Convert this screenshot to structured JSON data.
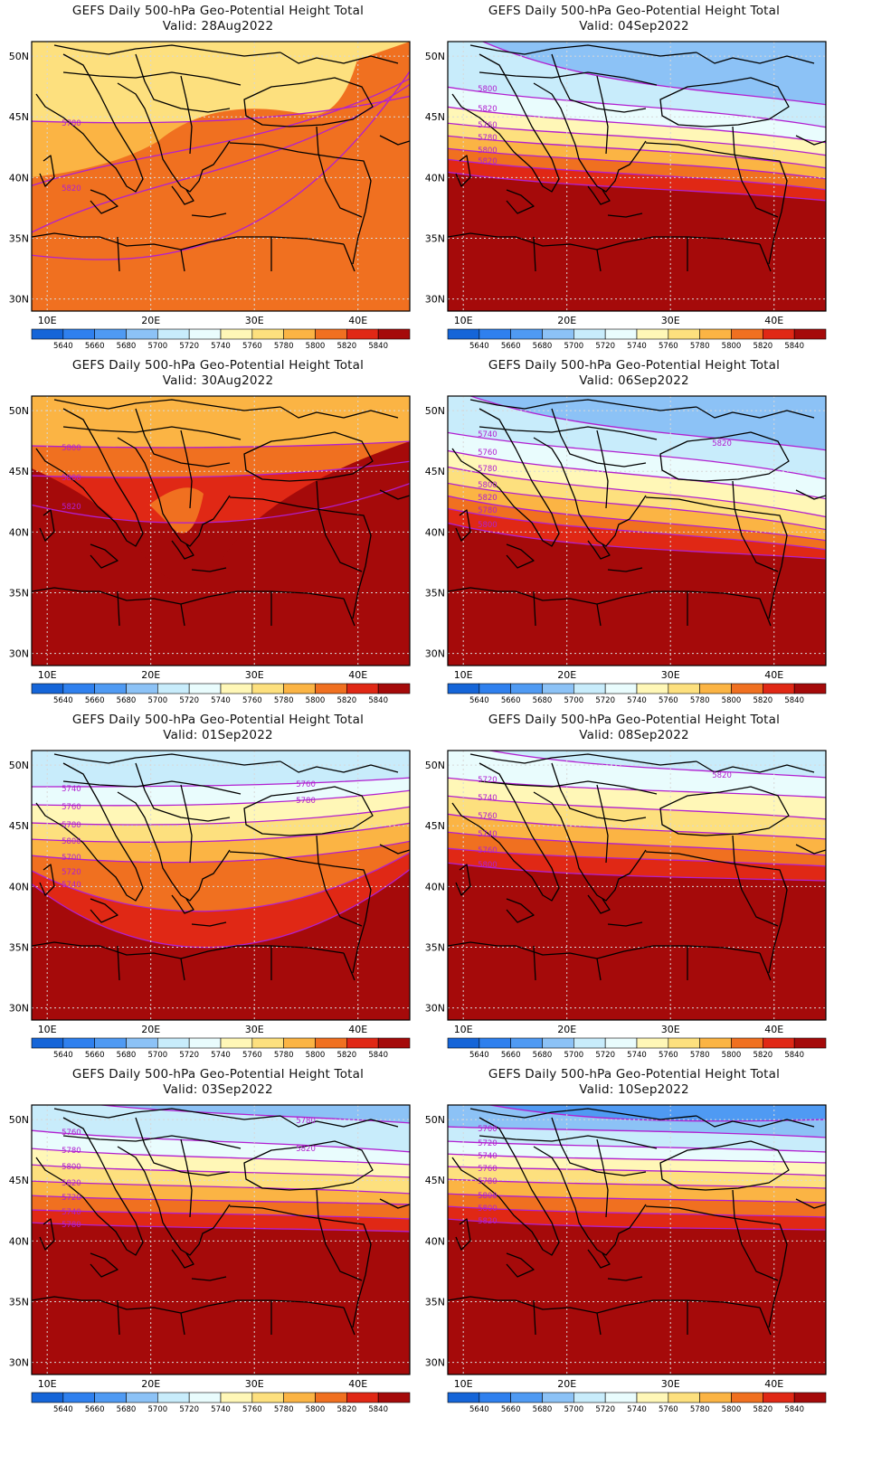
{
  "title_line": "GEFS Daily 500-hPa Geo-Potential Height Total",
  "lon_labels": [
    "10E",
    "20E",
    "30E",
    "40E"
  ],
  "lat_labels": [
    "50N",
    "45N",
    "40N",
    "35N",
    "30N"
  ],
  "colorbar": {
    "labels": [
      "5640",
      "5660",
      "5680",
      "5700",
      "5720",
      "5740",
      "5760",
      "5780",
      "5800",
      "5820",
      "5840"
    ],
    "colors": [
      "#1565d8",
      "#2f80ee",
      "#4f9af3",
      "#8cc2f6",
      "#c8ecfb",
      "#e9fcfd",
      "#fff7b7",
      "#fde07e",
      "#fbb444",
      "#f07020",
      "#e02815",
      "#a50a0a",
      "#a50a0a"
    ]
  },
  "panels": [
    {
      "valid": "Valid: 28Aug2022",
      "contour_labels": [
        "5780",
        "5820"
      ]
    },
    {
      "valid": "Valid: 04Sep2022",
      "contour_labels": [
        "5780",
        "5800",
        "5820",
        "5760",
        "5780",
        "5800",
        "5820"
      ]
    },
    {
      "valid": "Valid: 30Aug2022",
      "contour_labels": [
        "5800",
        "5800",
        "5820"
      ]
    },
    {
      "valid": "Valid: 06Sep2022",
      "contour_labels": [
        "5720",
        "5740",
        "5760",
        "5780",
        "5800",
        "5820",
        "5780",
        "5800",
        "5820"
      ]
    },
    {
      "valid": "Valid: 01Sep2022",
      "contour_labels": [
        "5740",
        "5760",
        "5780",
        "5800",
        "5700",
        "5720",
        "5740",
        "5760",
        "5780"
      ]
    },
    {
      "valid": "Valid: 08Sep2022",
      "contour_labels": [
        "5700",
        "5720",
        "5740",
        "5760",
        "5740",
        "5760",
        "5800",
        "5820"
      ]
    },
    {
      "valid": "Valid: 03Sep2022",
      "contour_labels": [
        "5740",
        "5760",
        "5780",
        "5800",
        "5820",
        "5720",
        "5740",
        "5780",
        "5780",
        "5820"
      ]
    },
    {
      "valid": "Valid: 10Sep2022",
      "contour_labels": [
        "5680",
        "5700",
        "5720",
        "5740",
        "5760",
        "5780",
        "5800",
        "5800",
        "5820"
      ]
    }
  ]
}
